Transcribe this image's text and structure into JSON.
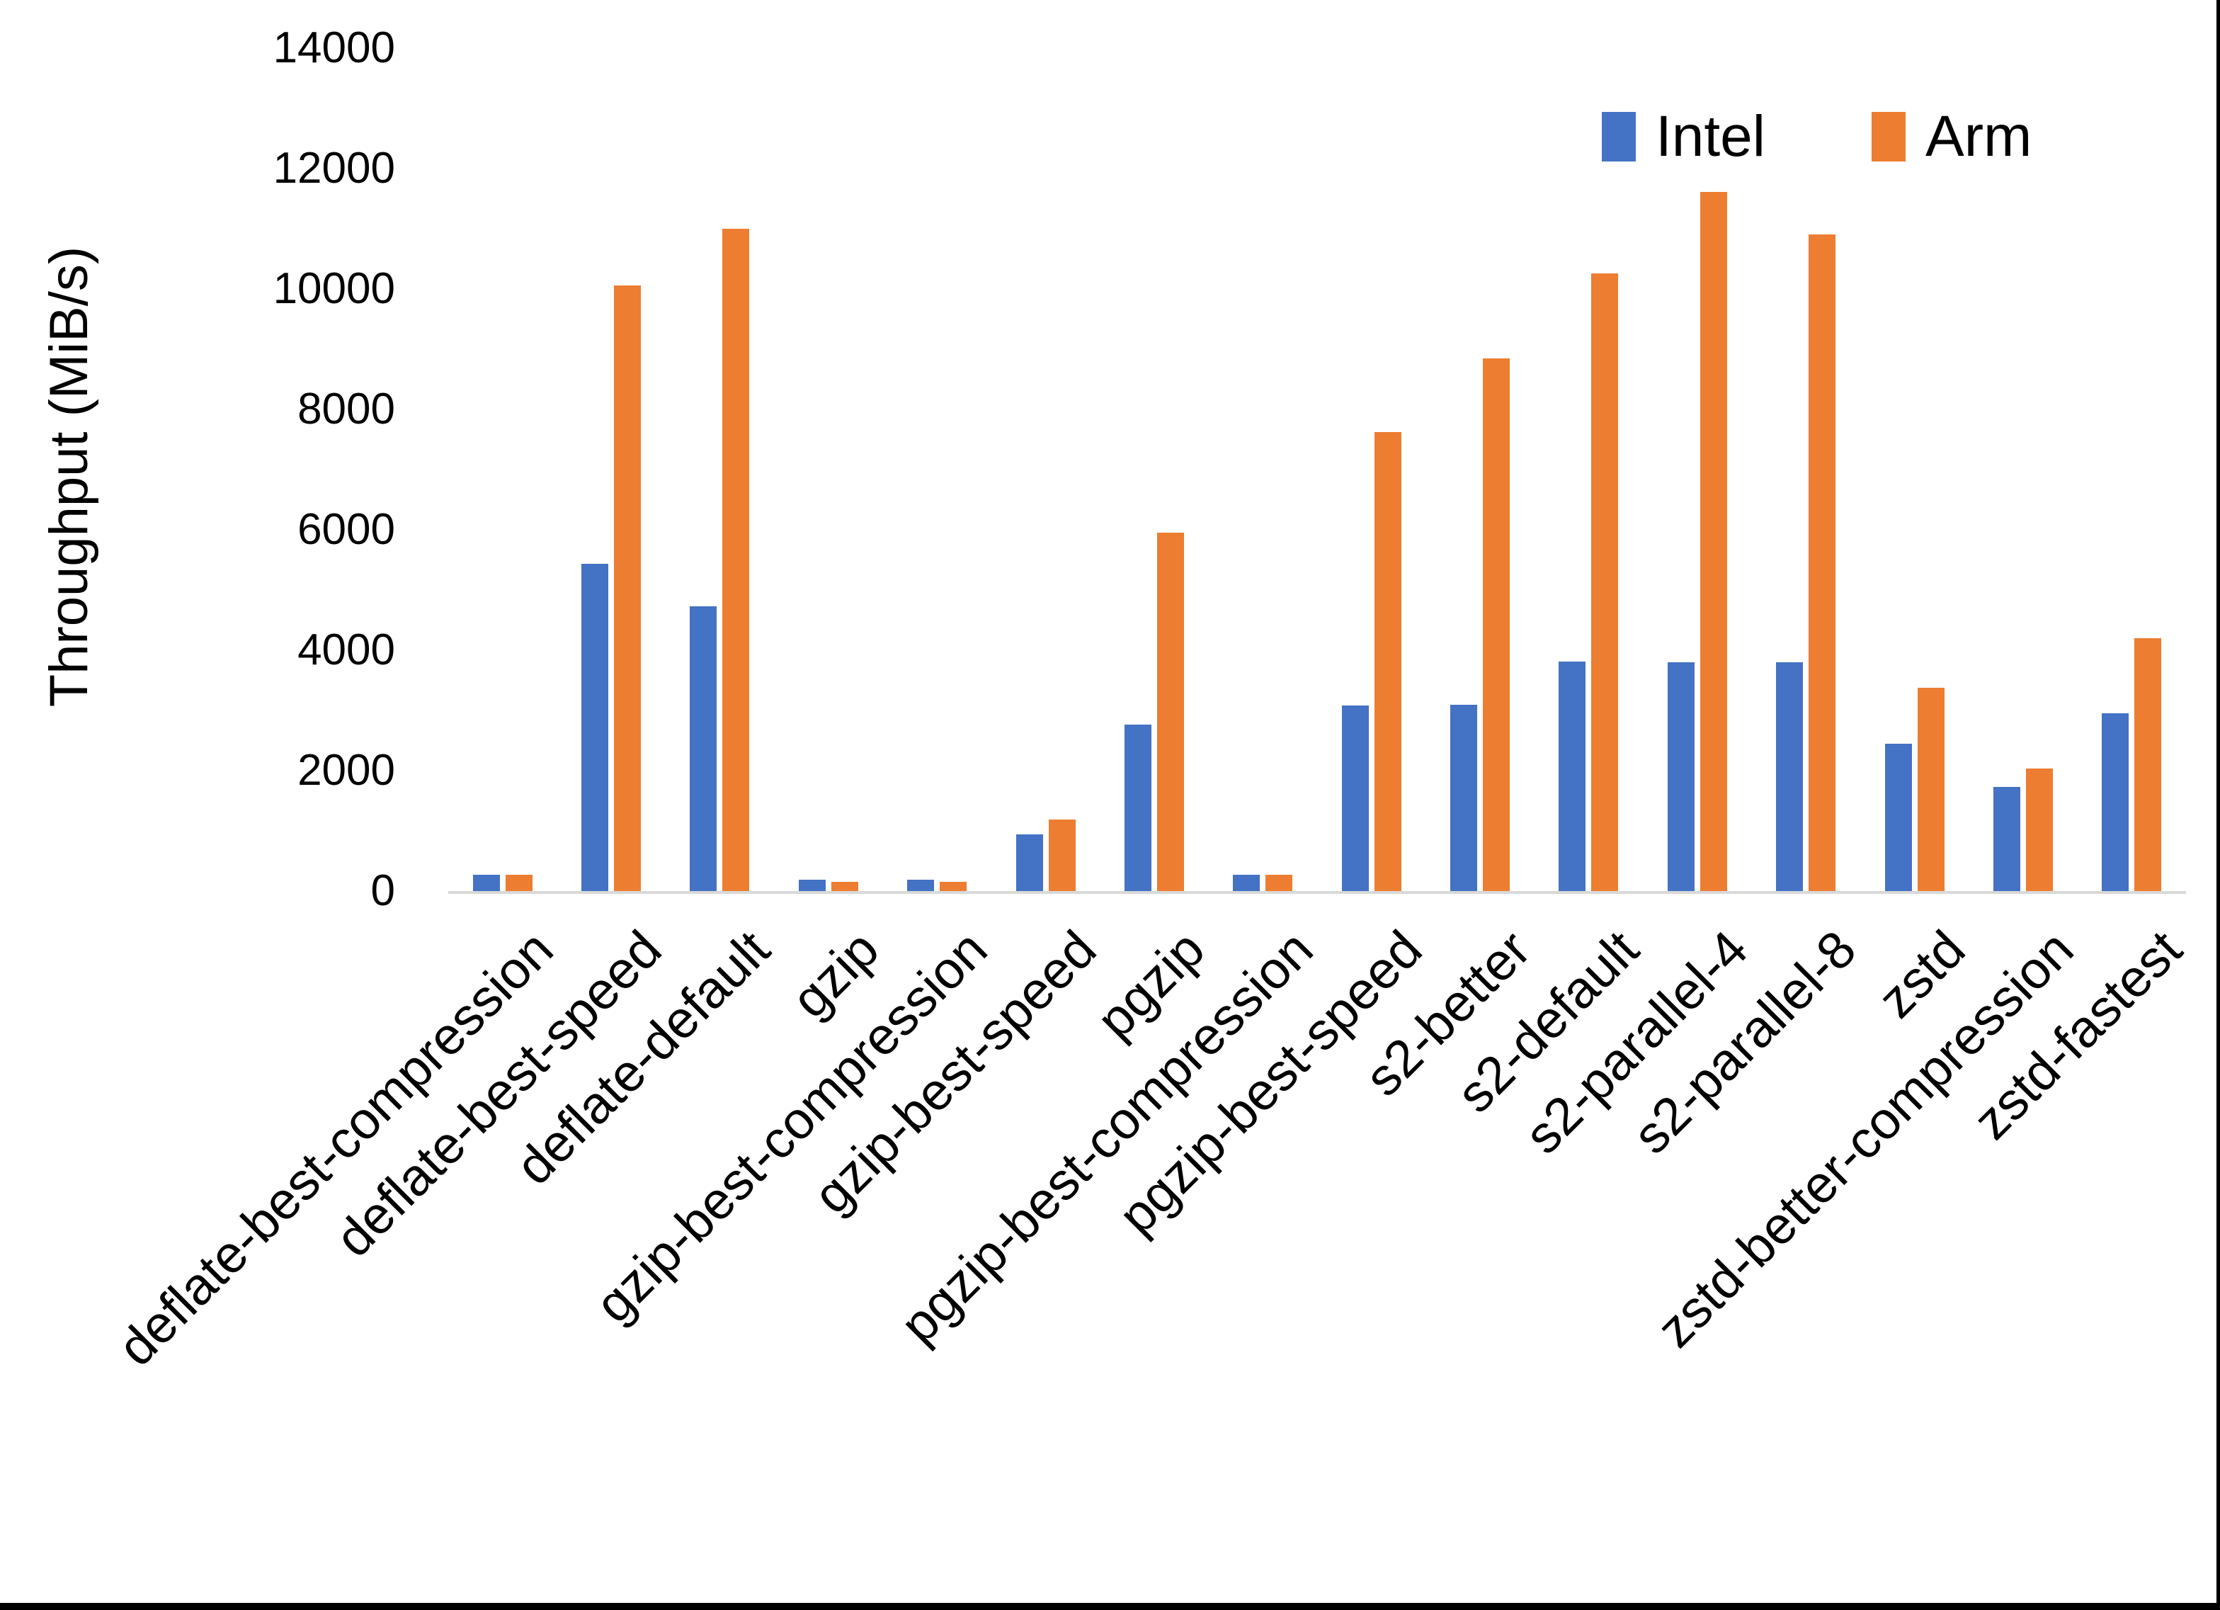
{
  "window": {
    "background": "#FFFFFF",
    "border_bottom_color": "#000000",
    "border_right_color": "#000000",
    "axis_line_color": "#D9D9D9",
    "text_color": "#000000"
  },
  "chart_data": {
    "type": "bar",
    "title": "",
    "xlabel": "",
    "ylabel": "Throughput (MiB/s)",
    "ylim": [
      0,
      14000
    ],
    "yticks": [
      0,
      2000,
      4000,
      6000,
      8000,
      10000,
      12000,
      14000
    ],
    "grid": false,
    "legend_position": "top-right",
    "x_label_rotation_deg": -45,
    "categories": [
      "deflate-best-compression",
      "deflate-best-speed",
      "deflate-default",
      "gzip",
      "gzip-best-compression",
      "gzip-best-speed",
      "pgzip",
      "pgzip-best-compression",
      "pgzip-best-speed",
      "s2-better",
      "s2-default",
      "s2-parallel-4",
      "s2-parallel-8",
      "zstd",
      "zstd-better-compression",
      "zstd-fastest"
    ],
    "series": [
      {
        "name": "Intel",
        "color": "#4472C4",
        "values": [
          270,
          5440,
          4730,
          185,
          185,
          940,
          2770,
          265,
          3080,
          3095,
          3810,
          3805,
          3805,
          2450,
          1730,
          2950
        ]
      },
      {
        "name": "Arm",
        "color": "#ED7D31",
        "values": [
          265,
          10060,
          11000,
          150,
          150,
          1185,
          5950,
          265,
          7620,
          8845,
          10260,
          11610,
          10900,
          3380,
          2030,
          4200
        ]
      }
    ]
  }
}
